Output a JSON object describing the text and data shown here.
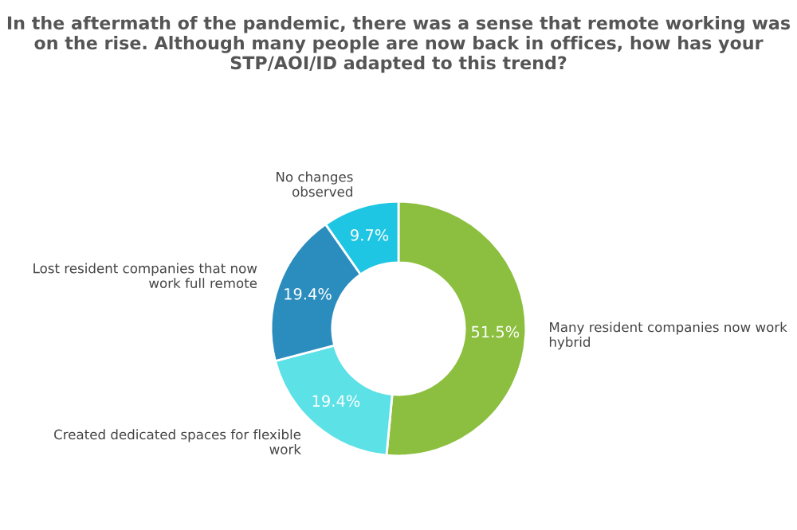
{
  "chart_data": {
    "type": "donut",
    "title": "In the aftermath of the pandemic, there was a sense that remote working was on the rise. Although many people are now back in offices, how has your STP/AOI/ID adapted to this trend?",
    "categories": [
      "Many resident companies now work\nhybrid",
      "Created dedicated spaces for flexible\nwork",
      "Lost resident companies that now\nwork full remote",
      "No changes\nobserved"
    ],
    "values": [
      51.5,
      19.4,
      19.4,
      9.7
    ],
    "colors": [
      "#8cbf3f",
      "#5ce1e6",
      "#2b8cbe",
      "#1fc6e3"
    ],
    "value_labels": [
      "51.5%",
      "19.4%",
      "19.4%",
      "9.7%"
    ],
    "legend": false
  }
}
